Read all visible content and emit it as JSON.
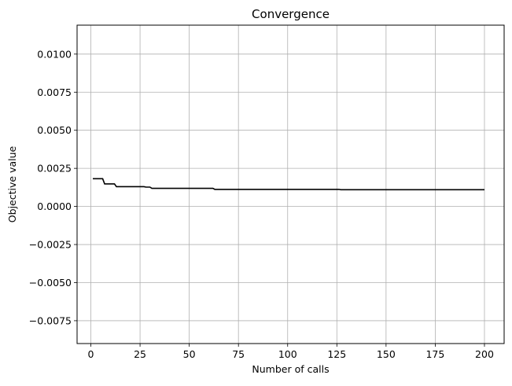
{
  "chart_data": {
    "type": "line",
    "title": "Convergence",
    "xlabel": "Number of calls",
    "ylabel": "Objective value",
    "xlim": [
      -7,
      210
    ],
    "ylim": [
      -0.009,
      0.0119
    ],
    "grid": true,
    "colors": {
      "line": "#000000",
      "grid": "#b0b0b0",
      "axes": "#000000"
    },
    "x_ticks": [
      {
        "value": 0,
        "label": "0"
      },
      {
        "value": 25,
        "label": "25"
      },
      {
        "value": 50,
        "label": "50"
      },
      {
        "value": 75,
        "label": "75"
      },
      {
        "value": 100,
        "label": "100"
      },
      {
        "value": 125,
        "label": "125"
      },
      {
        "value": 150,
        "label": "150"
      },
      {
        "value": 175,
        "label": "175"
      },
      {
        "value": 200,
        "label": "200"
      }
    ],
    "y_ticks": [
      {
        "value": -0.0075,
        "label": "−0.0075"
      },
      {
        "value": -0.005,
        "label": "−0.0050"
      },
      {
        "value": -0.0025,
        "label": "−0.0025"
      },
      {
        "value": 0.0,
        "label": "0.0000"
      },
      {
        "value": 0.0025,
        "label": "0.0025"
      },
      {
        "value": 0.005,
        "label": "0.0050"
      },
      {
        "value": 0.0075,
        "label": "0.0075"
      },
      {
        "value": 0.01,
        "label": "0.0100"
      }
    ],
    "series": [
      {
        "x": [
          1,
          6,
          7,
          12,
          13,
          27,
          28,
          30,
          31,
          62,
          63,
          126,
          127,
          200
        ],
        "y": [
          0.00182,
          0.00182,
          0.00148,
          0.00148,
          0.0013,
          0.0013,
          0.00127,
          0.00127,
          0.00119,
          0.00119,
          0.00112,
          0.00112,
          0.0011,
          0.0011
        ]
      }
    ]
  }
}
